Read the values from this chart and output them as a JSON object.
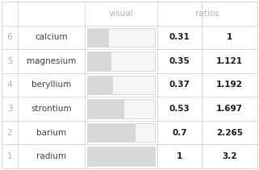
{
  "rows": [
    {
      "rank": "6",
      "name": "calcium",
      "visual": 0.31,
      "ratio": "1"
    },
    {
      "rank": "5",
      "name": "magnesium",
      "visual": 0.35,
      "ratio": "1.121"
    },
    {
      "rank": "4",
      "name": "beryllium",
      "visual": 0.37,
      "ratio": "1.192"
    },
    {
      "rank": "3",
      "name": "strontium",
      "visual": 0.53,
      "ratio": "1.697"
    },
    {
      "rank": "2",
      "name": "barium",
      "visual": 0.7,
      "ratio": "2.265"
    },
    {
      "rank": "1",
      "name": "radium",
      "visual": 1.0,
      "ratio": "3.2"
    }
  ],
  "header_visual": "visual",
  "header_ratios": "ratios",
  "bg_color": "#ffffff",
  "header_text_color": "#b0b0b0",
  "rank_color": "#b0b0b0",
  "name_color": "#404040",
  "value_color": "#1a1a1a",
  "bar_fill_color": "#d8d8d8",
  "bar_bg_color": "#f5f5f5",
  "grid_color": "#cccccc",
  "bar_max": 1.0,
  "font_size": 7.5
}
